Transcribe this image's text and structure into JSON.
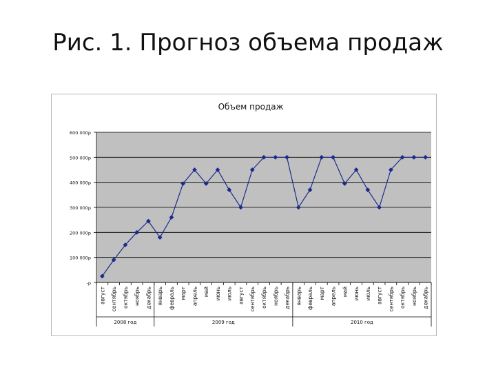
{
  "slide": {
    "title": "Рис. 1. Прогноз объема продаж"
  },
  "chart_data": {
    "type": "line",
    "title": "Объем продаж",
    "xlabel": "",
    "ylabel": "",
    "ylim": [
      0,
      600000
    ],
    "yticks": [
      0,
      100000,
      200000,
      300000,
      400000,
      500000,
      600000
    ],
    "ytick_labels": [
      "-р",
      "100 000р",
      "200 000р",
      "300 000р",
      "400 000р",
      "500 000р",
      "600 000р"
    ],
    "grid": true,
    "legend": "none",
    "categories": [
      "август",
      "сентябрь",
      "октябрь",
      "ноябрь",
      "декабрь",
      "январь",
      "февраль",
      "март",
      "апрель",
      "май",
      "июнь",
      "июль",
      "август",
      "сентябрь",
      "октябрь",
      "ноябрь",
      "декабрь",
      "январь",
      "февраль",
      "март",
      "апрель",
      "май",
      "июнь",
      "июль",
      "август",
      "сентябрь",
      "октябрь",
      "ноябрь",
      "декабрь"
    ],
    "groups": [
      {
        "label": "2008 год",
        "count": 5
      },
      {
        "label": "2009 год",
        "count": 12
      },
      {
        "label": "2010 год",
        "count": 12
      }
    ],
    "series": [
      {
        "values": [
          25000,
          90000,
          150000,
          200000,
          245000,
          180000,
          260000,
          395000,
          450000,
          395000,
          450000,
          370000,
          300000,
          450000,
          500000,
          500000,
          500000,
          300000,
          370000,
          500000,
          500000,
          395000,
          450000,
          370000,
          300000,
          450000,
          500000,
          500000,
          500000
        ]
      }
    ],
    "colors": {
      "line": "#1c2a8c",
      "plot_bg": "#c0c0c0",
      "grid": "#000000"
    }
  }
}
